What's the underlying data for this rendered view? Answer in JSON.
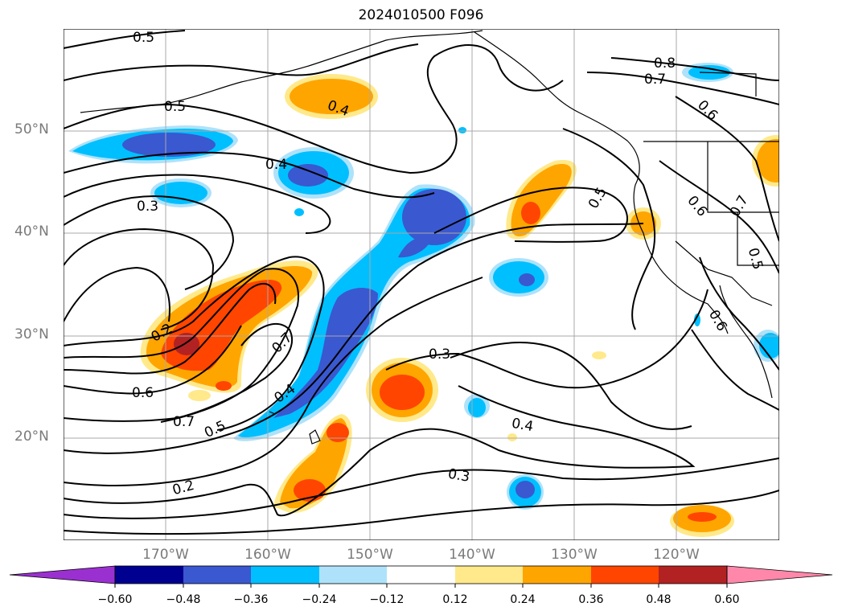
{
  "title": "2024010500 F096",
  "lat_labels": [
    "50°N",
    "40°N",
    "30°N",
    "20°N"
  ],
  "lon_labels": [
    "170°W",
    "160°W",
    "150°W",
    "140°W",
    "130°W",
    "120°W"
  ],
  "colorbar": {
    "ticks": [
      "−0.60",
      "−0.48",
      "−0.36",
      "−0.24",
      "−0.12",
      "0.12",
      "0.24",
      "0.36",
      "0.48",
      "0.60"
    ],
    "colors": [
      "#9b30d0",
      "#000090",
      "#3a58d0",
      "#00bfff",
      "#aee2fb",
      "#ffffff",
      "#ffe98a",
      "#ffa500",
      "#ff4500",
      "#b22222",
      "#ff88aa"
    ]
  },
  "contour_labels": [
    "0.5",
    "0.5",
    "0.4",
    "0.4",
    "0.3",
    "0.2",
    "0.6",
    "0.7",
    "0.5",
    "0.7",
    "0.4",
    "0.2",
    "0.3",
    "0.4",
    "0.3",
    "0.5",
    "0.8",
    "0.7",
    "0.6",
    "0.6",
    "0.7",
    "0.6",
    "0.5"
  ]
}
